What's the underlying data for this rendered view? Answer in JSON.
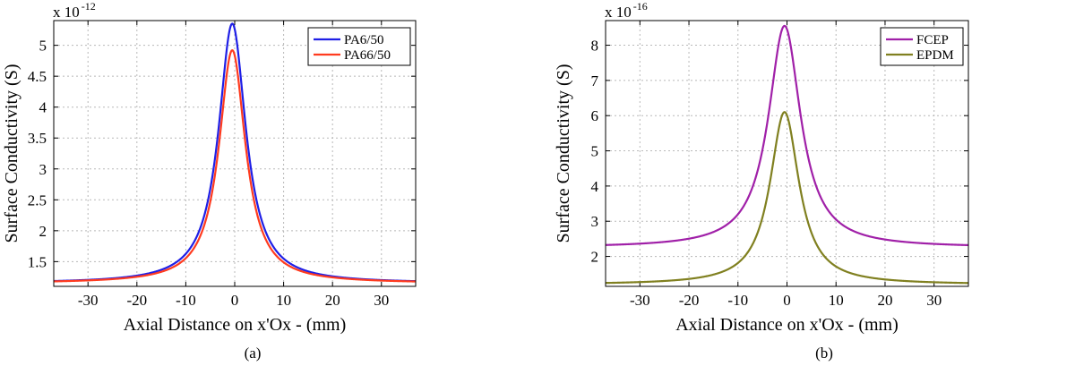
{
  "chart_data": [
    {
      "type": "line",
      "panel_label": "(a)",
      "multiplier": {
        "base": "x 10",
        "exponent": "-12"
      },
      "xlabel": "Axial Distance on x'Ox - (mm)",
      "ylabel": "Surface Conductivity (S)",
      "xlim": [
        -37,
        37
      ],
      "ylim": [
        1.1,
        5.4
      ],
      "xticks": [
        -30,
        -20,
        -10,
        0,
        10,
        20,
        30
      ],
      "yticks": [
        1.5,
        2,
        2.5,
        3,
        3.5,
        4,
        4.5,
        5
      ],
      "grid": true,
      "legend_position": "top-right",
      "series": [
        {
          "name": "PA6/50",
          "color": "#1f1fe6",
          "base": 1.15,
          "peak": 5.35,
          "width": 3.4,
          "center": -0.5
        },
        {
          "name": "PA66/50",
          "color": "#ff3b1f",
          "base": 1.15,
          "peak": 4.92,
          "width": 3.3,
          "center": -0.5
        }
      ]
    },
    {
      "type": "line",
      "panel_label": "(b)",
      "multiplier": {
        "base": "x 10",
        "exponent": "-16"
      },
      "xlabel": "Axial Distance on x'Ox - (mm)",
      "ylabel": "Surface Conductivity (S)",
      "xlim": [
        -37,
        37
      ],
      "ylim": [
        1.15,
        8.7
      ],
      "xticks": [
        -30,
        -20,
        -10,
        0,
        10,
        20,
        30
      ],
      "yticks": [
        2,
        3,
        4,
        5,
        6,
        7,
        8
      ],
      "grid": true,
      "legend_position": "top-right",
      "series": [
        {
          "name": "FCEP",
          "color": "#a020a8",
          "base": 2.25,
          "peak": 8.55,
          "width": 4.0,
          "center": -0.5
        },
        {
          "name": "EPDM",
          "color": "#808020",
          "base": 1.2,
          "peak": 6.1,
          "width": 3.6,
          "center": -0.5
        }
      ]
    }
  ]
}
